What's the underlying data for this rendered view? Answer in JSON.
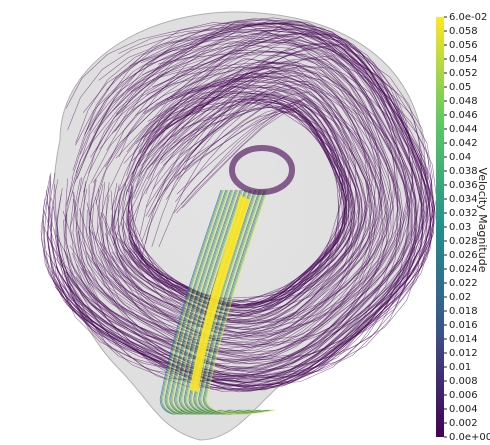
{
  "chart_data": {
    "type": "streamlines",
    "colorbar": {
      "title": "Velocity Magnitude",
      "lim": [
        0,
        0.06
      ],
      "colors": [
        "#440154",
        "#3b528b",
        "#21918c",
        "#5ec962",
        "#fde725"
      ],
      "ticks": [
        {
          "value": 0,
          "label": "0.0e+00"
        },
        0.002,
        0.004,
        0.006,
        0.008,
        0.01,
        0.012,
        0.014,
        0.016,
        0.018,
        0.02,
        0.022,
        0.024,
        0.026,
        0.028,
        0.03,
        0.032,
        0.034,
        0.036,
        0.038,
        0.04,
        0.042,
        0.044,
        0.046,
        0.048,
        0.05,
        0.052,
        0.054,
        0.056,
        0.058,
        {
          "value": 0.06,
          "label": "6.0e-02"
        }
      ]
    }
  }
}
